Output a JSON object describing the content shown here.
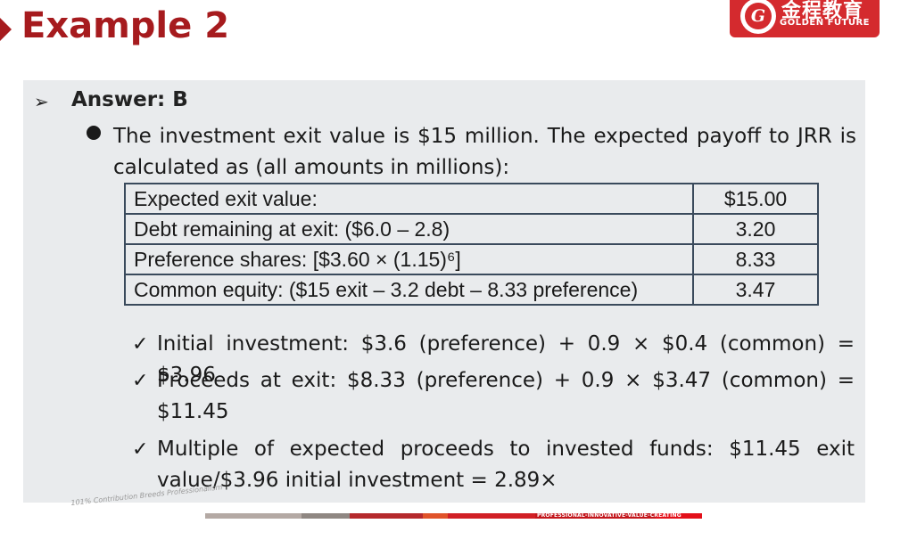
{
  "header": {
    "title": "Example 2",
    "logo": {
      "chinese": "金程教育",
      "english": "GOLDEN FUTURE",
      "mark": "G"
    }
  },
  "answer": {
    "marker": "➢",
    "label": "Answer: B"
  },
  "bullet_text": "The investment exit value is $15 million. The expected payoff to JRR is calculated as (all amounts in millions):",
  "table": {
    "rows": [
      {
        "label": "Expected exit value:",
        "value": "$15.00"
      },
      {
        "label": "Debt remaining at exit: ($6.0 – 2.8)",
        "value": "3.20"
      },
      {
        "label": "Preference shares: [$3.60 × (1.15)⁶]",
        "value": "8.33"
      },
      {
        "label": "Common equity: ($15 exit – 3.2 debt – 8.33 preference)",
        "value": "3.47"
      }
    ]
  },
  "checks": {
    "mark": "✓",
    "items": [
      "Initial investment: $3.6 (preference) + 0.9 × $0.4 (common) = $3.96",
      "Proceeds at exit: $8.33 (preference) + 0.9 × $3.47 (common) = $11.45",
      "Multiple of expected proceeds to invested funds: $11.45 exit value/$3.96 initial investment = 2.89×"
    ]
  },
  "footer": {
    "tagline": "101% Contribution Breeds Professionalism",
    "slogan": "PROFESSIONAL-INNOVATIVE-VALUE-CREATING"
  },
  "colors": {
    "brand_red": "#a61b1e",
    "logo_red": "#d42a2e",
    "panel_gray": "#e9ebed"
  }
}
